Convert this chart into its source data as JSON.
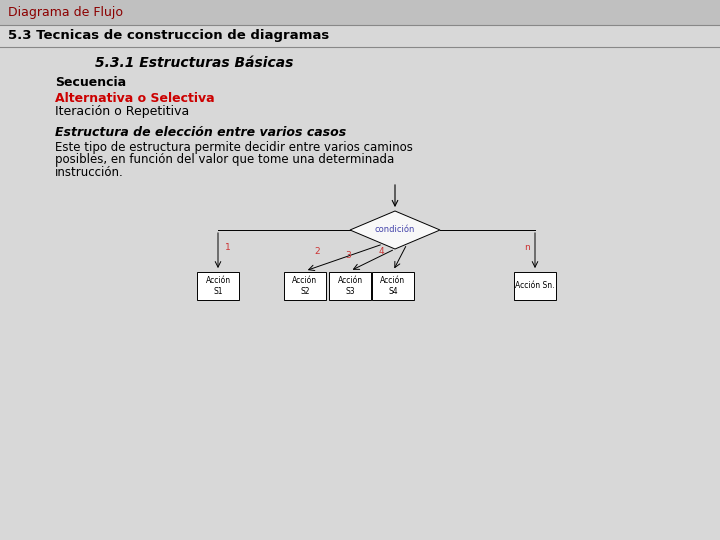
{
  "title_bar_text": "Diagrama de Flujo",
  "title_bar_color": "#c0c0c0",
  "title_bar_text_color": "#8b0000",
  "section_title": "5.3 Tecnicas de construccion de diagramas",
  "section_title_color": "#000000",
  "subsection_title": "5.3.1 Estructuras Básicas",
  "line1": "Secuencia",
  "line2": "Alternativa o Selectiva",
  "line2_color": "#cc0000",
  "line3": "Iteración o Repetitiva",
  "italic_title": "Estructura de elección entre varios casos",
  "para_line1": "Este tipo de estructura permite decidir entre varios caminos",
  "para_line2": "posibles, en función del valor que tome una determinada",
  "para_line3": "instrucción.",
  "bg_color": "#d8d8d8",
  "content_bg": "#ebebeb",
  "diamond_label": "condición",
  "diamond_color": "#4444aa",
  "box_labels": [
    "Acción\nS1",
    "Acción\nS2",
    "Acción\nS3",
    "Acción\nS4",
    "Acción Sn."
  ],
  "branch_labels": [
    "1",
    "2",
    "3",
    "4",
    "n"
  ],
  "branch_label_color": "#cc3333",
  "title_bar_height": 25,
  "section_bar_height": 22
}
